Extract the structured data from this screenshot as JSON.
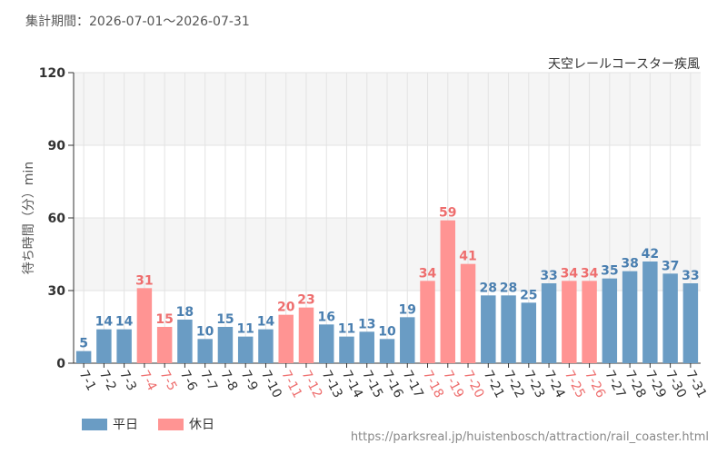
{
  "header": {
    "period_text": "集計期間：2026-07-01～2026-07-31"
  },
  "footer": {
    "url": "https://parksreal.jp/huistenbosch/attraction/rail_coaster.html"
  },
  "legend": {
    "items": [
      {
        "label": "平日",
        "color": "#6a9cc4"
      },
      {
        "label": "休日",
        "color": "#ff9493"
      }
    ]
  },
  "chart_data": {
    "type": "bar",
    "title": "天空レールコースター疾風",
    "ylabel": "待ち時間（分）min",
    "xlabel": "",
    "ylim": [
      0,
      120
    ],
    "yticks": [
      0,
      30,
      60,
      90,
      120
    ],
    "categories": [
      "7-1",
      "7-2",
      "7-3",
      "7-4",
      "7-5",
      "7-6",
      "7-7",
      "7-8",
      "7-9",
      "7-10",
      "7-11",
      "7-12",
      "7-13",
      "7-14",
      "7-15",
      "7-16",
      "7-17",
      "7-18",
      "7-19",
      "7-20",
      "7-21",
      "7-22",
      "7-23",
      "7-24",
      "7-25",
      "7-26",
      "7-27",
      "7-28",
      "7-29",
      "7-30",
      "7-31"
    ],
    "values": [
      5,
      14,
      14,
      31,
      15,
      18,
      10,
      15,
      11,
      14,
      20,
      23,
      16,
      11,
      13,
      10,
      19,
      34,
      59,
      41,
      28,
      28,
      25,
      33,
      34,
      34,
      35,
      38,
      42,
      37,
      33
    ],
    "day_type": [
      "平日",
      "平日",
      "平日",
      "休日",
      "休日",
      "平日",
      "平日",
      "平日",
      "平日",
      "平日",
      "休日",
      "休日",
      "平日",
      "平日",
      "平日",
      "平日",
      "平日",
      "休日",
      "休日",
      "休日",
      "平日",
      "平日",
      "平日",
      "平日",
      "休日",
      "休日",
      "平日",
      "平日",
      "平日",
      "平日",
      "平日"
    ],
    "colors": {
      "weekday_bar": "#6a9cc4",
      "holiday_bar": "#ff9493",
      "weekday_label": "#4a7fb0",
      "holiday_label": "#ee6e6e",
      "band": "#f5f5f5",
      "grid": "#e3e3e3"
    },
    "grid": true,
    "legend_position": "bottom-left"
  }
}
